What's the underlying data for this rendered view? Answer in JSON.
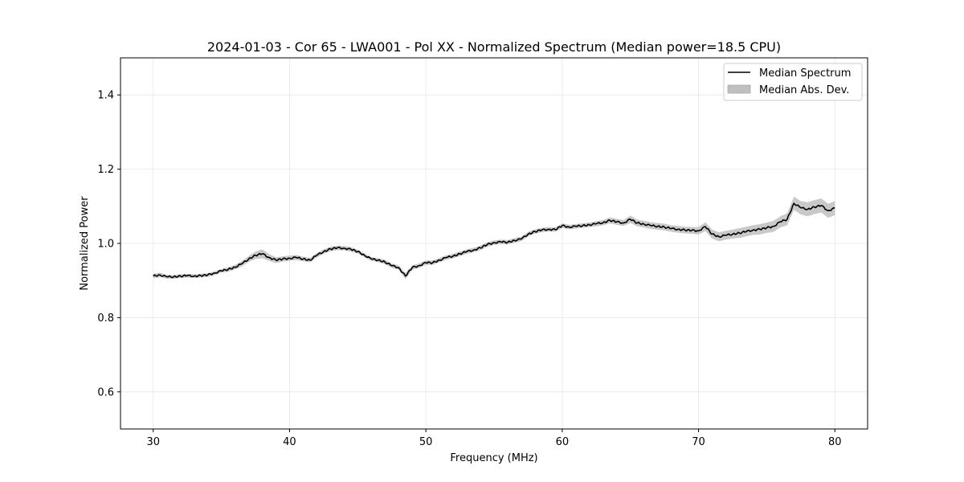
{
  "chart_data": {
    "type": "line",
    "title": "2024-01-03 - Cor 65 - LWA001 - Pol XX - Normalized Spectrum (Median power=18.5 CPU)",
    "xlabel": "Frequency (MHz)",
    "ylabel": "Normalized Power",
    "xlim": [
      27.6,
      82.4
    ],
    "ylim": [
      0.5,
      1.5
    ],
    "xticks": [
      30,
      40,
      50,
      60,
      70,
      80
    ],
    "xtick_labels": [
      "30",
      "40",
      "50",
      "60",
      "70",
      "80"
    ],
    "yticks": [
      0.6,
      0.8,
      1.0,
      1.2,
      1.4
    ],
    "ytick_labels": [
      "0.6",
      "0.8",
      "1.0",
      "1.2",
      "1.4"
    ],
    "grid": true,
    "legend": {
      "position": "top-right",
      "entries": [
        "Median Spectrum",
        "Median Abs. Dev."
      ]
    },
    "colors": {
      "line": "#000000",
      "band": "#bfbfbf",
      "grid": "#e6e6e6"
    },
    "series": [
      {
        "name": "Median Spectrum",
        "x": [
          30,
          30.5,
          31,
          31.5,
          32,
          32.5,
          33,
          33.5,
          34,
          34.5,
          35,
          35.5,
          36,
          36.5,
          37,
          37.5,
          38,
          38.5,
          39,
          39.5,
          40,
          40.5,
          41,
          41.5,
          42,
          42.5,
          43,
          43.5,
          44,
          44.5,
          45,
          45.5,
          46,
          46.5,
          47,
          47.5,
          48,
          48.5,
          49,
          49.5,
          50,
          50.5,
          51,
          51.5,
          52,
          52.5,
          53,
          53.5,
          54,
          54.5,
          55,
          55.5,
          56,
          56.5,
          57,
          57.5,
          58,
          58.5,
          59,
          59.5,
          60,
          60.5,
          61,
          61.5,
          62,
          62.5,
          63,
          63.5,
          64,
          64.5,
          65,
          65.5,
          66,
          66.5,
          67,
          67.5,
          68,
          68.5,
          69,
          69.5,
          70,
          70.5,
          71,
          71.5,
          72,
          72.5,
          73,
          73.5,
          74,
          74.5,
          75,
          75.5,
          76,
          76.5,
          77,
          77.5,
          78,
          78.5,
          79,
          79.5,
          80
        ],
        "values": [
          0.912,
          0.915,
          0.91,
          0.91,
          0.912,
          0.913,
          0.912,
          0.913,
          0.915,
          0.92,
          0.926,
          0.93,
          0.936,
          0.945,
          0.958,
          0.968,
          0.972,
          0.962,
          0.955,
          0.958,
          0.96,
          0.962,
          0.958,
          0.955,
          0.968,
          0.978,
          0.985,
          0.988,
          0.987,
          0.984,
          0.978,
          0.968,
          0.958,
          0.955,
          0.95,
          0.94,
          0.935,
          0.912,
          0.935,
          0.94,
          0.948,
          0.948,
          0.955,
          0.962,
          0.966,
          0.972,
          0.978,
          0.982,
          0.988,
          0.997,
          1.002,
          1.004,
          1.003,
          1.008,
          1.012,
          1.025,
          1.032,
          1.036,
          1.038,
          1.037,
          1.048,
          1.044,
          1.046,
          1.048,
          1.05,
          1.053,
          1.056,
          1.062,
          1.058,
          1.055,
          1.065,
          1.055,
          1.052,
          1.048,
          1.046,
          1.044,
          1.04,
          1.038,
          1.036,
          1.035,
          1.034,
          1.045,
          1.025,
          1.018,
          1.022,
          1.025,
          1.028,
          1.032,
          1.036,
          1.038,
          1.042,
          1.046,
          1.058,
          1.065,
          1.108,
          1.096,
          1.092,
          1.098,
          1.102,
          1.088,
          1.095
        ]
      },
      {
        "name": "Median Abs. Dev.",
        "x": [
          30,
          30.5,
          31,
          31.5,
          32,
          32.5,
          33,
          33.5,
          34,
          34.5,
          35,
          35.5,
          36,
          36.5,
          37,
          37.5,
          38,
          38.5,
          39,
          39.5,
          40,
          40.5,
          41,
          41.5,
          42,
          42.5,
          43,
          43.5,
          44,
          44.5,
          45,
          45.5,
          46,
          46.5,
          47,
          47.5,
          48,
          48.5,
          49,
          49.5,
          50,
          50.5,
          51,
          51.5,
          52,
          52.5,
          53,
          53.5,
          54,
          54.5,
          55,
          55.5,
          56,
          56.5,
          57,
          57.5,
          58,
          58.5,
          59,
          59.5,
          60,
          60.5,
          61,
          61.5,
          62,
          62.5,
          63,
          63.5,
          64,
          64.5,
          65,
          65.5,
          66,
          66.5,
          67,
          67.5,
          68,
          68.5,
          69,
          69.5,
          70,
          70.5,
          71,
          71.5,
          72,
          72.5,
          73,
          73.5,
          74,
          74.5,
          75,
          75.5,
          76,
          76.5,
          77,
          77.5,
          78,
          78.5,
          79,
          79.5,
          80
        ],
        "values": [
          0.006,
          0.006,
          0.005,
          0.005,
          0.005,
          0.005,
          0.005,
          0.005,
          0.005,
          0.005,
          0.005,
          0.006,
          0.006,
          0.007,
          0.008,
          0.01,
          0.012,
          0.009,
          0.008,
          0.007,
          0.007,
          0.007,
          0.006,
          0.006,
          0.006,
          0.006,
          0.006,
          0.006,
          0.006,
          0.006,
          0.005,
          0.005,
          0.005,
          0.005,
          0.006,
          0.006,
          0.006,
          0.008,
          0.006,
          0.006,
          0.006,
          0.006,
          0.006,
          0.006,
          0.006,
          0.006,
          0.006,
          0.006,
          0.006,
          0.006,
          0.006,
          0.006,
          0.006,
          0.006,
          0.006,
          0.006,
          0.006,
          0.006,
          0.006,
          0.006,
          0.006,
          0.006,
          0.006,
          0.006,
          0.006,
          0.007,
          0.007,
          0.008,
          0.008,
          0.008,
          0.01,
          0.009,
          0.009,
          0.009,
          0.009,
          0.009,
          0.009,
          0.009,
          0.009,
          0.009,
          0.01,
          0.012,
          0.012,
          0.012,
          0.012,
          0.012,
          0.013,
          0.013,
          0.013,
          0.014,
          0.014,
          0.015,
          0.015,
          0.016,
          0.018,
          0.018,
          0.019,
          0.019,
          0.019,
          0.019,
          0.019
        ]
      }
    ]
  }
}
